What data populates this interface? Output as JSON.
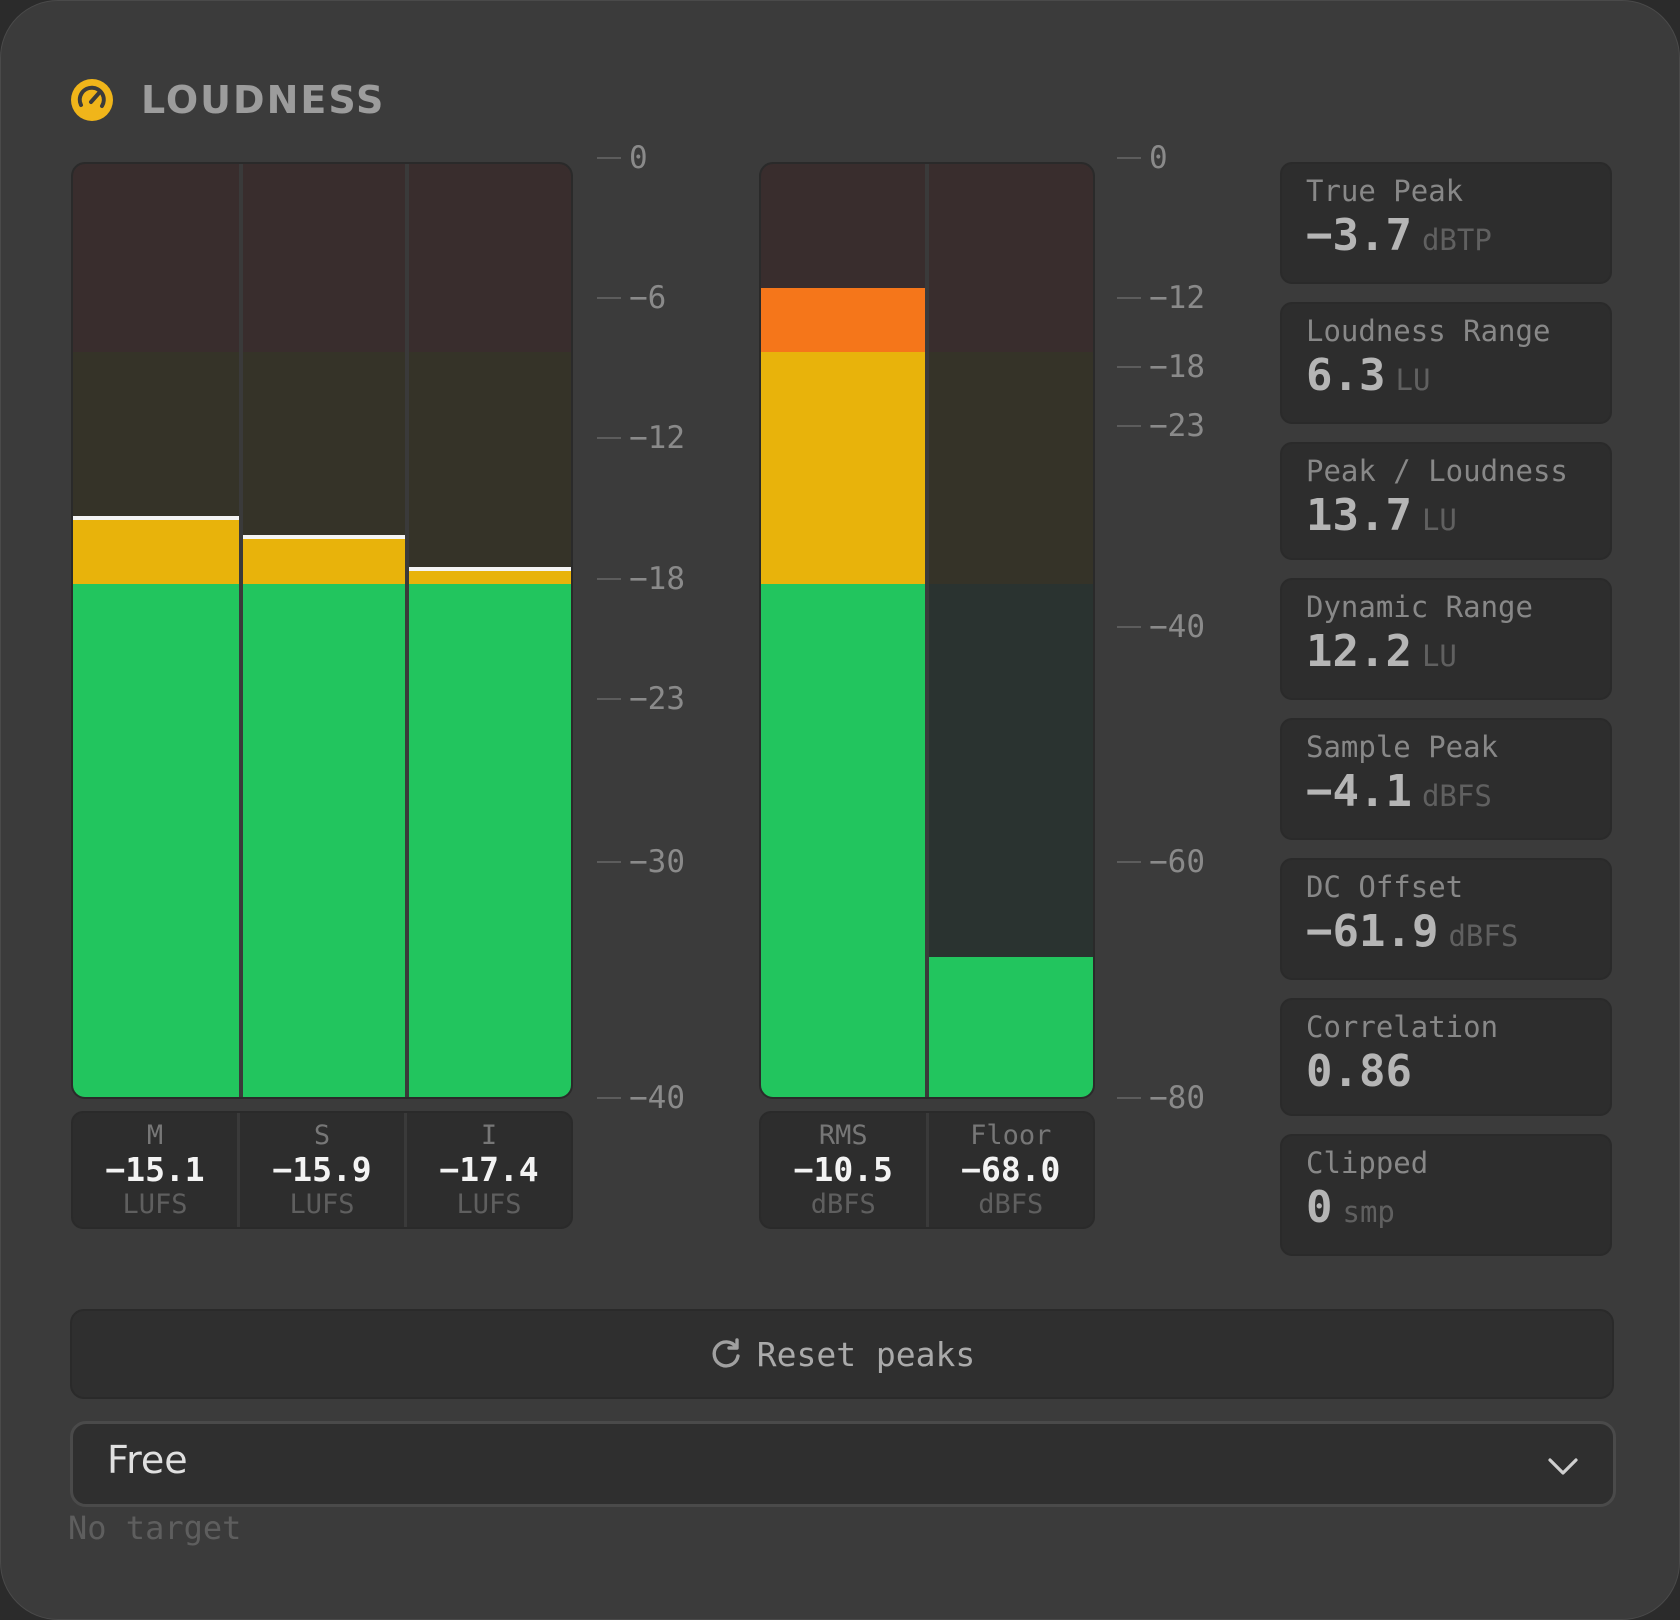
{
  "panel": {
    "title": "LOUDNESS",
    "logo_icon": "gauge-icon",
    "accent_color": "#f0b51a"
  },
  "loudness_meter": {
    "scale": [
      "0",
      "−6",
      "−12",
      "−18",
      "−23",
      "−30",
      "−40"
    ],
    "scale_values": [
      0,
      -6,
      -12,
      -18,
      -23,
      -30,
      -40
    ],
    "channels": [
      {
        "name": "M",
        "value": "−15.1",
        "unit": "LUFS",
        "level": -18.0,
        "warn_top": -15.0,
        "peak": -15.1
      },
      {
        "name": "S",
        "value": "−15.9",
        "unit": "LUFS",
        "level": -18.0,
        "warn_top": -15.9,
        "peak": -15.9
      },
      {
        "name": "I",
        "value": "−17.4",
        "unit": "LUFS",
        "level": -18.0,
        "warn_top": -17.4,
        "peak": -17.4
      }
    ]
  },
  "level_meter": {
    "scale": [
      "0",
      "−12",
      "−18",
      "−23",
      "−40",
      "−60",
      "−80"
    ],
    "scale_values": [
      0,
      -12,
      -18,
      -23,
      -40,
      -60,
      -80
    ],
    "channels": [
      {
        "name": "RMS",
        "value": "−10.5",
        "unit": "dBFS"
      },
      {
        "name": "Floor",
        "value": "−68.0",
        "unit": "dBFS"
      }
    ]
  },
  "stats": [
    {
      "name": "True Peak",
      "value": "−3.7",
      "unit": "dBTP"
    },
    {
      "name": "Loudness Range",
      "value": "6.3",
      "unit": "LU"
    },
    {
      "name": "Peak / Loudness",
      "value": "13.7",
      "unit": "LU"
    },
    {
      "name": "Dynamic Range",
      "value": "12.2",
      "unit": "LU"
    },
    {
      "name": "Sample Peak",
      "value": "−4.1",
      "unit": "dBFS"
    },
    {
      "name": "DC Offset",
      "value": "−61.9",
      "unit": "dBFS"
    },
    {
      "name": "Correlation",
      "value": "0.86",
      "unit": ""
    },
    {
      "name": "Clipped",
      "value": "0",
      "unit": "smp"
    }
  ],
  "controls": {
    "reset_label": "Reset peaks",
    "reset_icon": "refresh-icon",
    "target_value": "Free",
    "target_icon": "chevron-down-icon",
    "target_hint": "No target"
  },
  "colors": {
    "green": "#22c55e",
    "yellow": "#e8b30b",
    "orange": "#f5761a",
    "zone_red": "#392d2d",
    "zone_yellow": "#353328",
    "zone_green": "#2a3330"
  }
}
